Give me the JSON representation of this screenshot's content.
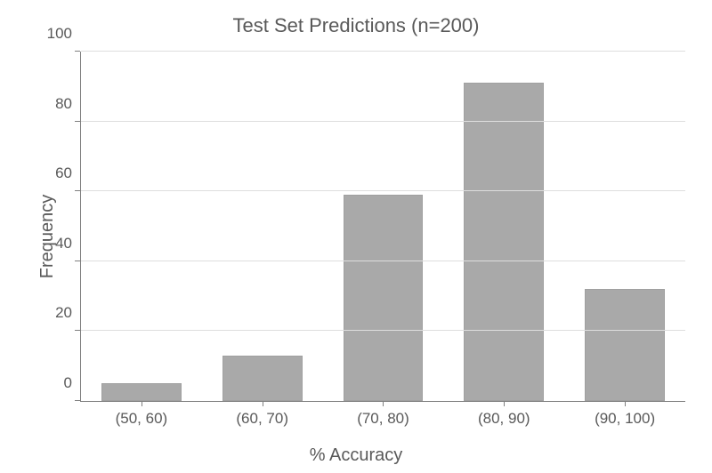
{
  "chart": {
    "type": "bar",
    "title": "Test Set Predictions (n=200)",
    "title_fontsize": 22,
    "title_color": "#595959",
    "xlabel": "% Accuracy",
    "ylabel": "Frequency",
    "label_fontsize": 20,
    "tick_fontsize": 17,
    "axis_color": "#7f7f7f",
    "text_color": "#595959",
    "background_color": "#ffffff",
    "grid_color": "#dedede",
    "ylim": [
      0,
      100
    ],
    "ytick_step": 20,
    "yticks": [
      0,
      20,
      40,
      60,
      80,
      100
    ],
    "bar_color": "#a9a9a9",
    "bar_width": 0.66,
    "categories": [
      "(50, 60)",
      "(60, 70)",
      "(70, 80)",
      "(80, 90)",
      "(90, 100)"
    ],
    "values": [
      5,
      13,
      59,
      91,
      32
    ]
  }
}
